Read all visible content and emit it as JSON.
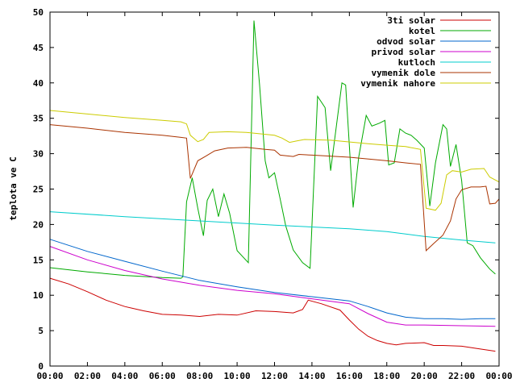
{
  "chart_data": {
    "type": "line",
    "title": "",
    "xlabel": "",
    "ylabel": "teplota ve C",
    "xlim": [
      0,
      24
    ],
    "ylim": [
      0,
      50
    ],
    "grid": false,
    "legend_position": "top-right",
    "x_ticks": [
      "00:00",
      "02:00",
      "04:00",
      "06:00",
      "08:00",
      "10:00",
      "12:00",
      "14:00",
      "16:00",
      "18:00",
      "20:00",
      "22:00",
      "00:00"
    ],
    "y_ticks": [
      "0",
      "5",
      "10",
      "15",
      "20",
      "25",
      "30",
      "35",
      "40",
      "45",
      "50"
    ],
    "series": [
      {
        "name": "3ti solar",
        "color": "#cc0000",
        "points": [
          [
            0,
            12.4
          ],
          [
            1,
            11.6
          ],
          [
            2,
            10.5
          ],
          [
            3,
            9.3
          ],
          [
            4,
            8.4
          ],
          [
            5,
            7.8
          ],
          [
            6,
            7.3
          ],
          [
            7,
            7.2
          ],
          [
            8,
            7.0
          ],
          [
            9,
            7.3
          ],
          [
            10,
            7.2
          ],
          [
            11,
            7.8
          ],
          [
            12,
            7.7
          ],
          [
            13,
            7.5
          ],
          [
            13.5,
            8.0
          ],
          [
            13.8,
            9.3
          ],
          [
            14.5,
            8.8
          ],
          [
            15.5,
            7.9
          ],
          [
            16,
            6.5
          ],
          [
            16.5,
            5.2
          ],
          [
            17,
            4.2
          ],
          [
            17.5,
            3.6
          ],
          [
            18,
            3.2
          ],
          [
            18.5,
            3.0
          ],
          [
            19,
            3.2
          ],
          [
            20,
            3.3
          ],
          [
            20.5,
            2.9
          ],
          [
            21,
            2.9
          ],
          [
            22,
            2.8
          ],
          [
            23,
            2.4
          ],
          [
            23.8,
            2.1
          ]
        ]
      },
      {
        "name": "kotel",
        "color": "#00aa00",
        "points": [
          [
            0,
            13.9
          ],
          [
            2,
            13.3
          ],
          [
            4,
            12.8
          ],
          [
            6,
            12.5
          ],
          [
            7,
            12.4
          ],
          [
            7.1,
            12.6
          ],
          [
            7.3,
            23.2
          ],
          [
            7.6,
            26.6
          ],
          [
            7.9,
            22.3
          ],
          [
            8.2,
            18.4
          ],
          [
            8.4,
            23.4
          ],
          [
            8.7,
            25.0
          ],
          [
            9.0,
            21.1
          ],
          [
            9.3,
            24.3
          ],
          [
            9.6,
            21.6
          ],
          [
            10,
            16.3
          ],
          [
            10.6,
            14.6
          ],
          [
            10.9,
            48.8
          ],
          [
            11.2,
            39.8
          ],
          [
            11.5,
            29.0
          ],
          [
            11.7,
            26.6
          ],
          [
            12,
            27.3
          ],
          [
            12.3,
            23.6
          ],
          [
            12.6,
            19.8
          ],
          [
            13,
            16.4
          ],
          [
            13.5,
            14.6
          ],
          [
            13.9,
            13.8
          ],
          [
            14.3,
            38.1
          ],
          [
            14.7,
            36.5
          ],
          [
            15,
            27.6
          ],
          [
            15.3,
            33.8
          ],
          [
            15.6,
            40.0
          ],
          [
            15.8,
            39.7
          ],
          [
            16.2,
            22.4
          ],
          [
            16.5,
            29.5
          ],
          [
            16.9,
            35.4
          ],
          [
            17.2,
            33.9
          ],
          [
            17.6,
            34.3
          ],
          [
            17.9,
            34.7
          ],
          [
            18.1,
            28.4
          ],
          [
            18.4,
            28.7
          ],
          [
            18.7,
            33.5
          ],
          [
            19.0,
            32.9
          ],
          [
            19.3,
            32.6
          ],
          [
            19.6,
            31.9
          ],
          [
            20.0,
            30.8
          ],
          [
            20.3,
            22.6
          ],
          [
            20.6,
            28.7
          ],
          [
            21.0,
            34.1
          ],
          [
            21.2,
            33.5
          ],
          [
            21.4,
            28.2
          ],
          [
            21.7,
            31.3
          ],
          [
            22.0,
            26.2
          ],
          [
            22.3,
            17.4
          ],
          [
            22.6,
            17.0
          ],
          [
            23.0,
            15.3
          ],
          [
            23.5,
            13.7
          ],
          [
            23.8,
            13.0
          ]
        ]
      },
      {
        "name": "odvod solar",
        "color": "#0066cc",
        "points": [
          [
            0,
            17.9
          ],
          [
            2,
            16.2
          ],
          [
            4,
            14.8
          ],
          [
            6,
            13.4
          ],
          [
            8,
            12.1
          ],
          [
            10,
            11.2
          ],
          [
            12,
            10.4
          ],
          [
            14,
            9.8
          ],
          [
            16,
            9.2
          ],
          [
            17,
            8.4
          ],
          [
            18,
            7.5
          ],
          [
            19,
            6.9
          ],
          [
            20,
            6.7
          ],
          [
            21,
            6.7
          ],
          [
            22,
            6.6
          ],
          [
            23,
            6.7
          ],
          [
            23.8,
            6.7
          ]
        ]
      },
      {
        "name": "privod solar",
        "color": "#cc00cc",
        "points": [
          [
            0,
            16.9
          ],
          [
            2,
            15.0
          ],
          [
            4,
            13.5
          ],
          [
            6,
            12.3
          ],
          [
            8,
            11.4
          ],
          [
            10,
            10.7
          ],
          [
            12,
            10.2
          ],
          [
            14,
            9.5
          ],
          [
            16,
            8.8
          ],
          [
            17,
            7.4
          ],
          [
            18,
            6.2
          ],
          [
            19,
            5.8
          ],
          [
            20,
            5.8
          ],
          [
            22,
            5.7
          ],
          [
            23.8,
            5.6
          ]
        ]
      },
      {
        "name": "kutloch",
        "color": "#00cccc",
        "points": [
          [
            0,
            21.8
          ],
          [
            4,
            21.1
          ],
          [
            8,
            20.5
          ],
          [
            12,
            19.9
          ],
          [
            16,
            19.4
          ],
          [
            18,
            19.0
          ],
          [
            20,
            18.3
          ],
          [
            22,
            17.8
          ],
          [
            23.8,
            17.4
          ]
        ]
      },
      {
        "name": "vymenik dole",
        "color": "#aa3300",
        "points": [
          [
            0,
            34.1
          ],
          [
            2,
            33.6
          ],
          [
            4,
            33.0
          ],
          [
            6,
            32.6
          ],
          [
            7,
            32.3
          ],
          [
            7.3,
            32.2
          ],
          [
            7.5,
            26.5
          ],
          [
            7.9,
            29.0
          ],
          [
            8.3,
            29.6
          ],
          [
            8.8,
            30.4
          ],
          [
            9.5,
            30.8
          ],
          [
            10.5,
            30.9
          ],
          [
            11.5,
            30.6
          ],
          [
            12,
            30.5
          ],
          [
            12.3,
            29.8
          ],
          [
            13,
            29.6
          ],
          [
            13.3,
            29.9
          ],
          [
            14,
            29.8
          ],
          [
            16,
            29.5
          ],
          [
            18,
            29.0
          ],
          [
            19,
            28.7
          ],
          [
            19.8,
            28.5
          ],
          [
            20.1,
            16.3
          ],
          [
            20.5,
            17.3
          ],
          [
            21,
            18.5
          ],
          [
            21.4,
            20.5
          ],
          [
            21.7,
            23.6
          ],
          [
            22.0,
            24.9
          ],
          [
            22.5,
            25.3
          ],
          [
            23.0,
            25.3
          ],
          [
            23.3,
            25.4
          ],
          [
            23.5,
            22.9
          ],
          [
            23.8,
            23.0
          ],
          [
            24.0,
            23.6
          ]
        ]
      },
      {
        "name": "vymenik nahore",
        "color": "#cccc00",
        "points": [
          [
            0,
            36.1
          ],
          [
            2,
            35.6
          ],
          [
            4,
            35.1
          ],
          [
            6,
            34.7
          ],
          [
            7,
            34.5
          ],
          [
            7.3,
            34.2
          ],
          [
            7.5,
            32.6
          ],
          [
            7.9,
            31.7
          ],
          [
            8.2,
            32.0
          ],
          [
            8.5,
            33.0
          ],
          [
            9.5,
            33.1
          ],
          [
            10.5,
            33.0
          ],
          [
            12,
            32.6
          ],
          [
            12.4,
            32.2
          ],
          [
            12.8,
            31.6
          ],
          [
            13.2,
            31.8
          ],
          [
            13.6,
            32.0
          ],
          [
            15,
            31.9
          ],
          [
            17,
            31.4
          ],
          [
            18,
            31.2
          ],
          [
            19,
            31.0
          ],
          [
            19.8,
            30.6
          ],
          [
            20.1,
            22.3
          ],
          [
            20.6,
            22.0
          ],
          [
            20.9,
            23.0
          ],
          [
            21.2,
            27.0
          ],
          [
            21.5,
            27.6
          ],
          [
            22,
            27.4
          ],
          [
            22.5,
            27.8
          ],
          [
            23.2,
            27.9
          ],
          [
            23.5,
            26.7
          ],
          [
            24.0,
            26.0
          ]
        ]
      }
    ]
  }
}
